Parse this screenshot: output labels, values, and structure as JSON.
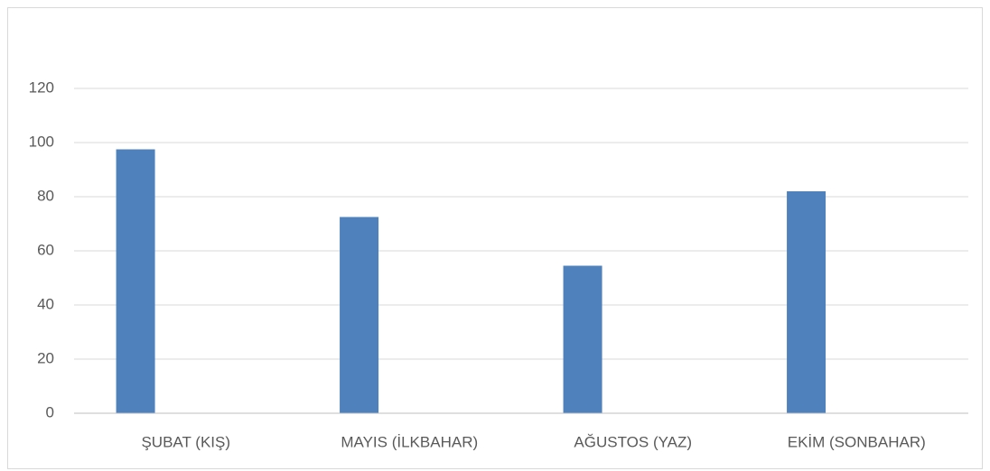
{
  "chart_data": {
    "type": "bar",
    "categories": [
      "ŞUBAT (KIŞ)",
      "MAYIS (İLKBAHAR)",
      "AĞUSTOS (YAZ)",
      "EKİM (SONBAHAR)"
    ],
    "values": [
      97.5,
      72.5,
      54.5,
      82
    ],
    "color": "#4f81bd",
    "ylim": [
      0,
      120
    ],
    "yticks": [
      0,
      20,
      40,
      60,
      80,
      100,
      120
    ],
    "grid": true
  }
}
